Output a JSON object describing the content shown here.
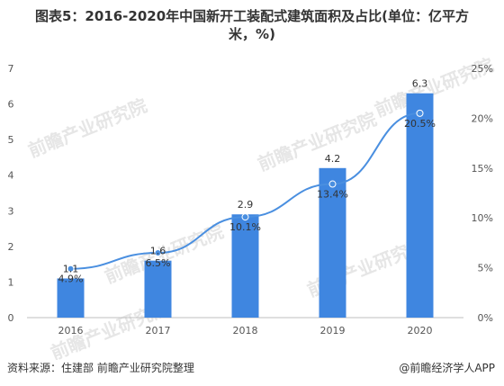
{
  "title_line1": "图表5：2016-2020年中国新开工装配式建筑面积及占比(单位：亿平方",
  "title_line2": "米，%)",
  "source": "资料来源：住建部 前瞻产业研究院整理",
  "credit": "@前瞻经济学人APP",
  "watermark": "前瞻产业研究院",
  "colors": {
    "bar": "#3f86e0",
    "line": "#4a8fe0"
  },
  "chart_data": {
    "type": "bar",
    "categories": [
      "2016",
      "2017",
      "2018",
      "2019",
      "2020"
    ],
    "series": [
      {
        "values": [
          1.1,
          1.6,
          2.9,
          4.2,
          6.3
        ],
        "type": "bar",
        "axis": "left"
      },
      {
        "values": [
          4.9,
          6.5,
          10.1,
          13.4,
          20.5
        ],
        "type": "line",
        "axis": "right"
      }
    ],
    "value_labels": [
      "1.1",
      "1.6",
      "2.9",
      "4.2",
      "6.3"
    ],
    "pct_labels": [
      "4.9%",
      "6.5%",
      "10.1%",
      "13.4%",
      "20.5%"
    ],
    "y_left": {
      "min": 0,
      "max": 7,
      "ticks": [
        "0",
        "1",
        "2",
        "3",
        "4",
        "5",
        "6",
        "7"
      ]
    },
    "y_right": {
      "min": 0,
      "max": 25,
      "ticks": [
        "0%",
        "5%",
        "10%",
        "15%",
        "20%",
        "25%"
      ]
    },
    "grid": false,
    "legend": "none"
  }
}
